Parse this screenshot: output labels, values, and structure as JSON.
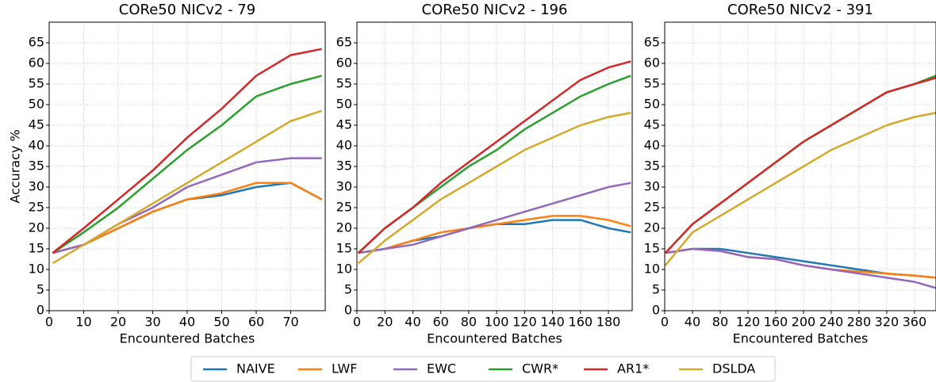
{
  "chart_data": [
    {
      "type": "line",
      "title": "CORe50 NICv2 - 79",
      "x_label": "Encountered Batches",
      "y_label": "Accuracy %",
      "x": [
        1,
        10,
        20,
        30,
        40,
        50,
        60,
        70,
        79
      ],
      "xlim": [
        0,
        80
      ],
      "xticks": [
        0,
        10,
        20,
        30,
        40,
        50,
        60,
        70
      ],
      "ylim": [
        0,
        70
      ],
      "yticks": [
        0,
        5,
        10,
        15,
        20,
        25,
        30,
        35,
        40,
        45,
        50,
        55,
        60,
        65
      ],
      "grid": true,
      "series": [
        {
          "name": "NAIVE",
          "color": "#1f77b4",
          "values": [
            14,
            16,
            20,
            24,
            27,
            28,
            30,
            31,
            27
          ]
        },
        {
          "name": "LWF",
          "color": "#ff7f0e",
          "values": [
            14,
            16,
            20,
            24,
            27,
            28.5,
            31,
            31,
            27
          ]
        },
        {
          "name": "EWC",
          "color": "#9467bd",
          "values": [
            14,
            16,
            21,
            25,
            30,
            33,
            36,
            37,
            37
          ]
        },
        {
          "name": "CWR*",
          "color": "#2ca02c",
          "values": [
            14,
            19,
            25,
            32,
            39,
            45,
            52,
            55,
            57
          ]
        },
        {
          "name": "AR1*",
          "color": "#d62728",
          "values": [
            14,
            20,
            27,
            34,
            42,
            49,
            57,
            62,
            63.5
          ]
        },
        {
          "name": "DSLDA",
          "color": "#d4a92b",
          "values": [
            11.5,
            16,
            21,
            26,
            31,
            36,
            41,
            46,
            48.5
          ]
        }
      ]
    },
    {
      "type": "line",
      "title": "CORe50 NICv2 - 196",
      "x_label": "Encountered Batches",
      "x": [
        1,
        20,
        40,
        60,
        80,
        100,
        120,
        140,
        160,
        180,
        196
      ],
      "xlim": [
        0,
        197
      ],
      "xticks": [
        0,
        20,
        40,
        60,
        80,
        100,
        120,
        140,
        160,
        180
      ],
      "ylim": [
        0,
        70
      ],
      "yticks": [
        0,
        5,
        10,
        15,
        20,
        25,
        30,
        35,
        40,
        45,
        50,
        55,
        60,
        65
      ],
      "grid": true,
      "series": [
        {
          "name": "NAIVE",
          "color": "#1f77b4",
          "values": [
            14,
            15,
            17,
            18,
            20,
            21,
            21,
            22,
            22,
            20,
            19
          ]
        },
        {
          "name": "LWF",
          "color": "#ff7f0e",
          "values": [
            14,
            15,
            17,
            19,
            20,
            21,
            22,
            23,
            23,
            22,
            20.5
          ]
        },
        {
          "name": "EWC",
          "color": "#9467bd",
          "values": [
            14,
            15,
            16,
            18,
            20,
            22,
            24,
            26,
            28,
            30,
            31
          ]
        },
        {
          "name": "CWR*",
          "color": "#2ca02c",
          "values": [
            14,
            20,
            25,
            30,
            35,
            39,
            44,
            48,
            52,
            55,
            57
          ]
        },
        {
          "name": "AR1*",
          "color": "#d62728",
          "values": [
            14,
            20,
            25,
            31,
            36,
            41,
            46,
            51,
            56,
            59,
            60.5
          ]
        },
        {
          "name": "DSLDA",
          "color": "#d4a92b",
          "values": [
            11.5,
            17,
            22,
            27,
            31,
            35,
            39,
            42,
            45,
            47,
            48
          ]
        }
      ]
    },
    {
      "type": "line",
      "title": "CORe50 NICv2 - 391",
      "x_label": "Encountered Batches",
      "x": [
        1,
        40,
        80,
        120,
        160,
        200,
        240,
        280,
        320,
        360,
        391
      ],
      "xlim": [
        0,
        391
      ],
      "xticks": [
        0,
        40,
        80,
        120,
        160,
        200,
        240,
        280,
        320,
        360
      ],
      "ylim": [
        0,
        70
      ],
      "yticks": [
        0,
        5,
        10,
        15,
        20,
        25,
        30,
        35,
        40,
        45,
        50,
        55,
        60,
        65
      ],
      "grid": true,
      "series": [
        {
          "name": "NAIVE",
          "color": "#1f77b4",
          "values": [
            14,
            15,
            15,
            14,
            13,
            12,
            11,
            10,
            9,
            8.5,
            8
          ]
        },
        {
          "name": "LWF",
          "color": "#ff7f0e",
          "values": [
            14,
            15,
            14.5,
            13,
            12.5,
            11,
            10,
            9.5,
            9,
            8.5,
            8
          ]
        },
        {
          "name": "EWC",
          "color": "#9467bd",
          "values": [
            14,
            15,
            14.5,
            13,
            12.5,
            11,
            10,
            9,
            8,
            7,
            5.5
          ]
        },
        {
          "name": "CWR*",
          "color": "#2ca02c",
          "values": [
            14,
            21,
            26,
            31,
            36,
            41,
            45,
            49,
            53,
            55,
            57
          ]
        },
        {
          "name": "AR1*",
          "color": "#d62728",
          "values": [
            14,
            21,
            26,
            31,
            36,
            41,
            45,
            49,
            53,
            55,
            56.5
          ]
        },
        {
          "name": "DSLDA",
          "color": "#d4a92b",
          "values": [
            11,
            19,
            23,
            27,
            31,
            35,
            39,
            42,
            45,
            47,
            48
          ]
        }
      ]
    }
  ]
}
